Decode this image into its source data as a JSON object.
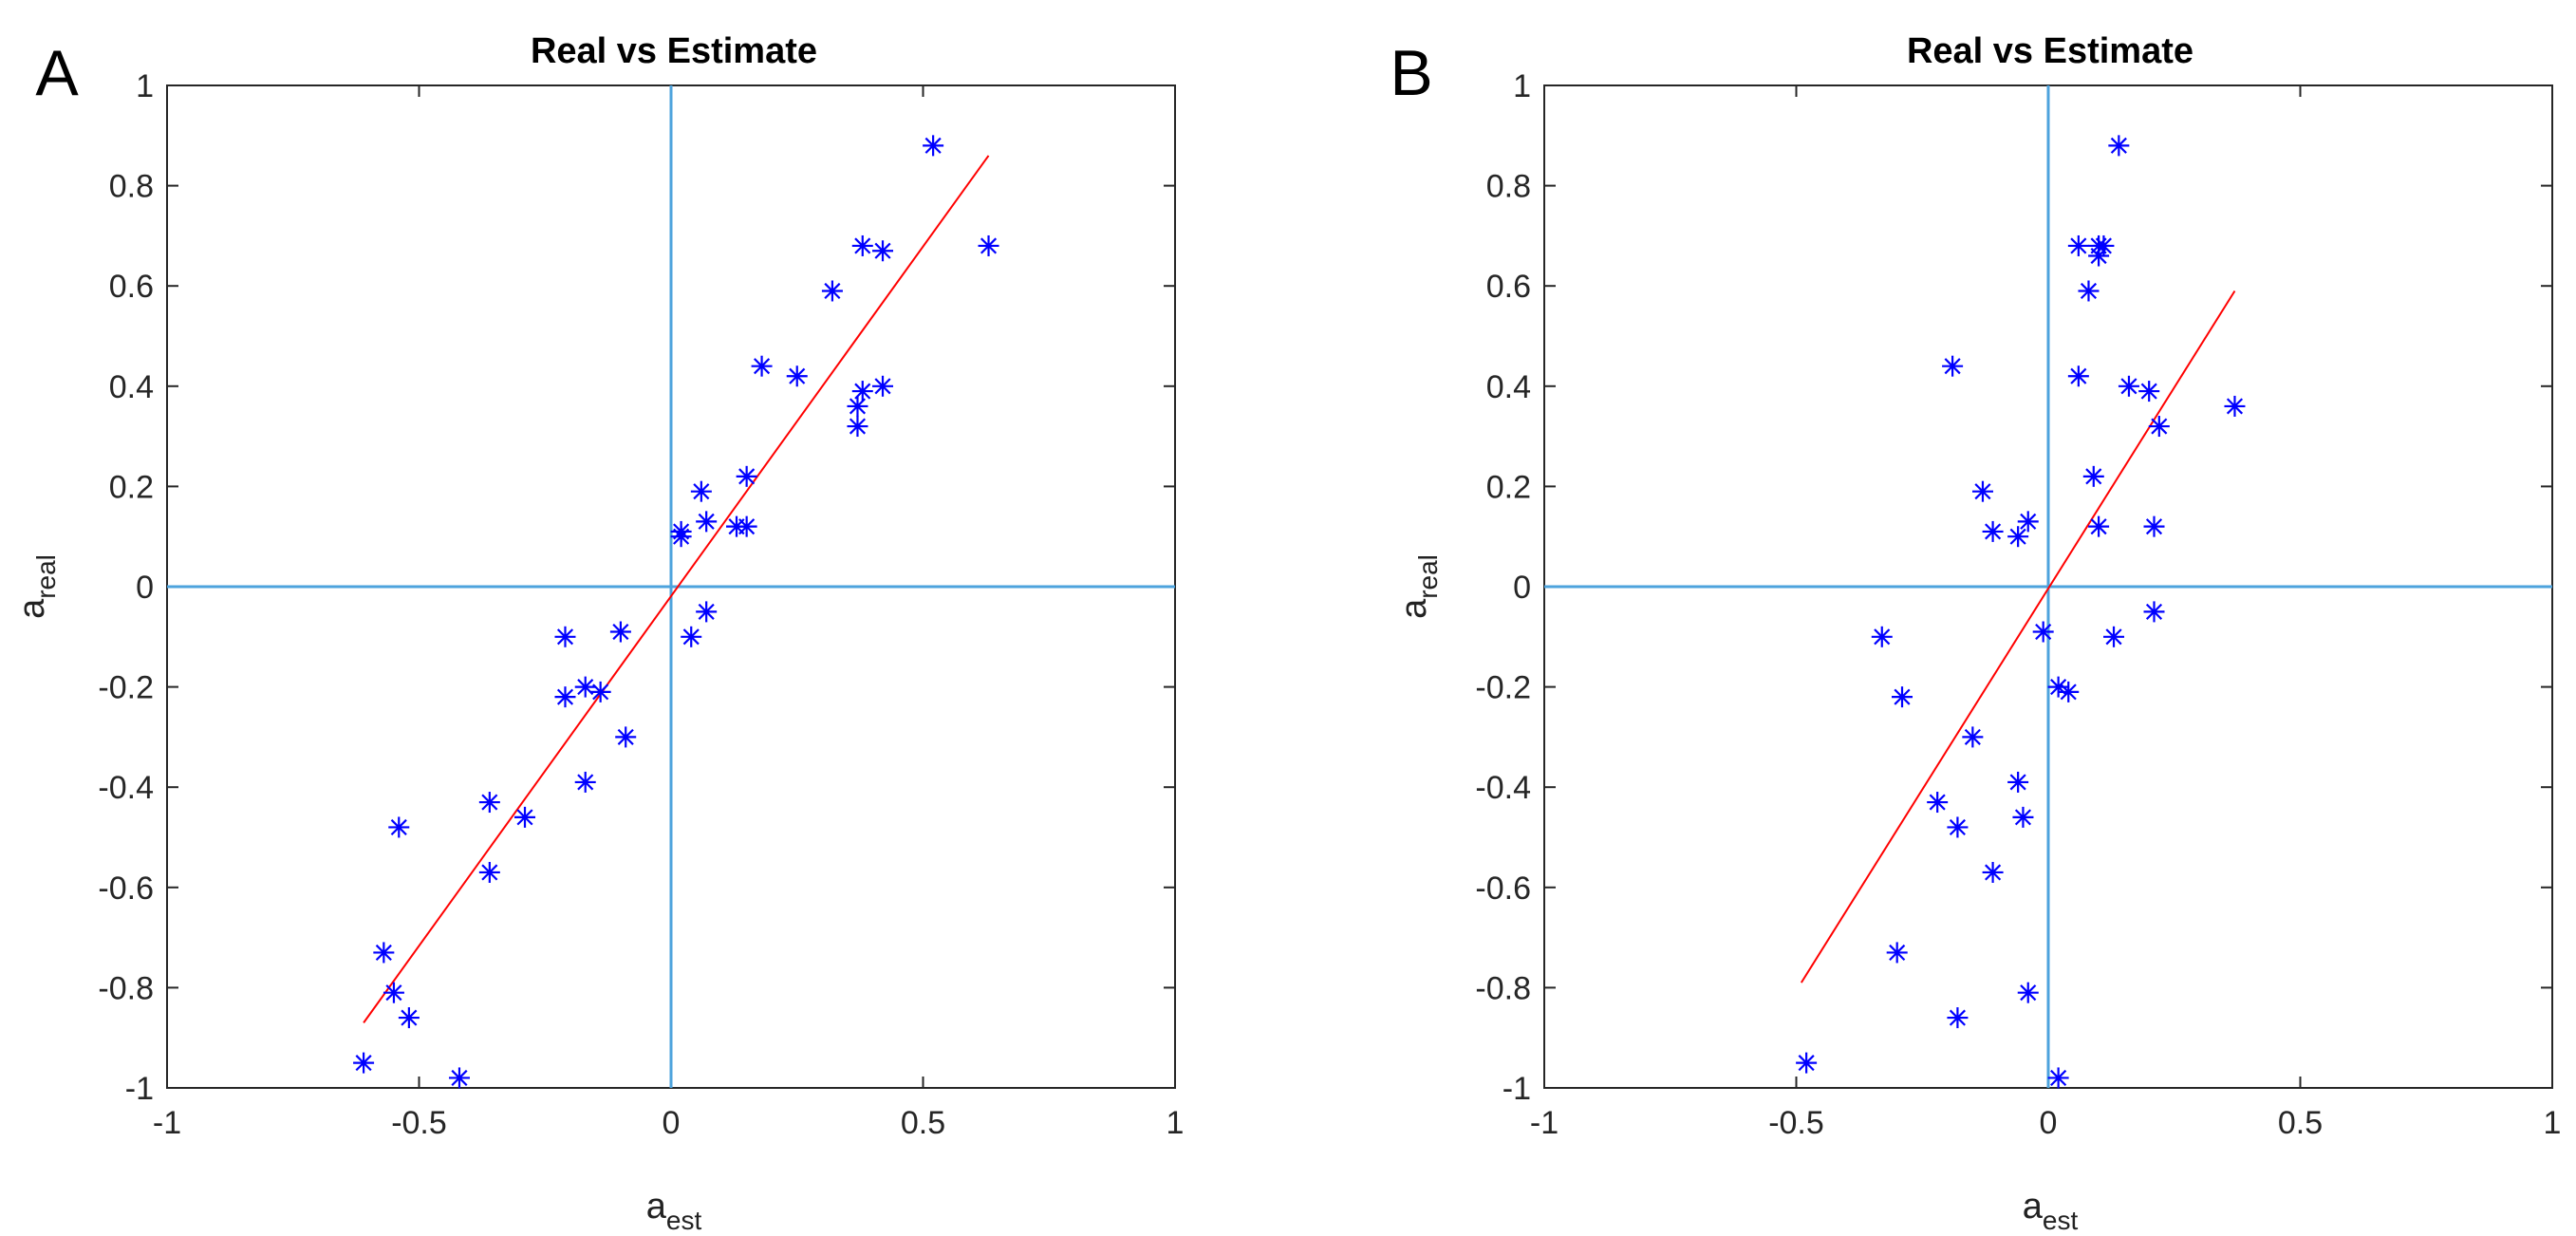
{
  "chart_data": [
    {
      "panel_label": "A",
      "type": "scatter",
      "title": "Real vs Estimate",
      "xlabel": {
        "base": "a",
        "sub": "est"
      },
      "ylabel": {
        "base": "a",
        "sub": "real"
      },
      "xlim": [
        -1,
        1
      ],
      "ylim": [
        -1,
        1
      ],
      "xticks": [
        "-1",
        "-0.5",
        "0",
        "0.5",
        "1"
      ],
      "yticks": [
        "-1",
        "-0.8",
        "-0.6",
        "-0.4",
        "-0.2",
        "0",
        "0.2",
        "0.4",
        "0.6",
        "0.8",
        "1"
      ],
      "marker_color": "#0000ff",
      "fit_color": "#ff0000",
      "axis_line_color": "#4da3dd",
      "points": [
        [
          0.52,
          0.88
        ],
        [
          0.38,
          0.68
        ],
        [
          0.63,
          0.68
        ],
        [
          0.42,
          0.67
        ],
        [
          0.32,
          0.59
        ],
        [
          0.18,
          0.44
        ],
        [
          0.25,
          0.42
        ],
        [
          0.38,
          0.39
        ],
        [
          0.42,
          0.4
        ],
        [
          0.37,
          0.36
        ],
        [
          0.37,
          0.32
        ],
        [
          0.15,
          0.22
        ],
        [
          0.06,
          0.19
        ],
        [
          0.07,
          0.13
        ],
        [
          0.13,
          0.12
        ],
        [
          0.15,
          0.12
        ],
        [
          0.02,
          0.11
        ],
        [
          0.02,
          0.1
        ],
        [
          0.07,
          -0.05
        ],
        [
          0.04,
          -0.1
        ],
        [
          -0.21,
          -0.1
        ],
        [
          -0.1,
          -0.09
        ],
        [
          -0.21,
          -0.22
        ],
        [
          -0.17,
          -0.2
        ],
        [
          -0.14,
          -0.21
        ],
        [
          -0.09,
          -0.3
        ],
        [
          -0.17,
          -0.39
        ],
        [
          -0.36,
          -0.43
        ],
        [
          -0.29,
          -0.46
        ],
        [
          -0.54,
          -0.48
        ],
        [
          -0.36,
          -0.57
        ],
        [
          -0.57,
          -0.73
        ],
        [
          -0.55,
          -0.81
        ],
        [
          -0.52,
          -0.86
        ],
        [
          -0.61,
          -0.95
        ],
        [
          -0.42,
          -0.98
        ]
      ],
      "fit_line": {
        "x": [
          -0.61,
          0.63
        ],
        "y": [
          -0.87,
          0.86
        ]
      }
    },
    {
      "panel_label": "B",
      "type": "scatter",
      "title": "Real vs Estimate",
      "xlabel": {
        "base": "a",
        "sub": "est"
      },
      "ylabel": {
        "base": "a",
        "sub": "real"
      },
      "xlim": [
        -1,
        1
      ],
      "ylim": [
        -1,
        1
      ],
      "xticks": [
        "-1",
        "-0.5",
        "0",
        "0.5",
        "1"
      ],
      "yticks": [
        "-1",
        "-0.8",
        "-0.6",
        "-0.4",
        "-0.2",
        "0",
        "0.2",
        "0.4",
        "0.6",
        "0.8",
        "1"
      ],
      "marker_color": "#0000ff",
      "fit_color": "#ff0000",
      "axis_line_color": "#4da3dd",
      "points": [
        [
          0.14,
          0.88
        ],
        [
          0.06,
          0.68
        ],
        [
          0.1,
          0.68
        ],
        [
          0.11,
          0.68
        ],
        [
          0.1,
          0.66
        ],
        [
          0.08,
          0.59
        ],
        [
          -0.19,
          0.44
        ],
        [
          0.06,
          0.42
        ],
        [
          0.16,
          0.4
        ],
        [
          0.2,
          0.39
        ],
        [
          0.37,
          0.36
        ],
        [
          0.22,
          0.32
        ],
        [
          0.09,
          0.22
        ],
        [
          -0.13,
          0.19
        ],
        [
          -0.04,
          0.13
        ],
        [
          -0.11,
          0.11
        ],
        [
          -0.06,
          0.1
        ],
        [
          0.1,
          0.12
        ],
        [
          0.21,
          0.12
        ],
        [
          0.21,
          -0.05
        ],
        [
          -0.33,
          -0.1
        ],
        [
          0.13,
          -0.1
        ],
        [
          -0.01,
          -0.09
        ],
        [
          -0.29,
          -0.22
        ],
        [
          0.02,
          -0.2
        ],
        [
          0.04,
          -0.21
        ],
        [
          -0.15,
          -0.3
        ],
        [
          -0.06,
          -0.39
        ],
        [
          -0.05,
          -0.46
        ],
        [
          -0.22,
          -0.43
        ],
        [
          -0.18,
          -0.48
        ],
        [
          -0.11,
          -0.57
        ],
        [
          -0.3,
          -0.73
        ],
        [
          -0.04,
          -0.81
        ],
        [
          -0.18,
          -0.86
        ],
        [
          -0.48,
          -0.95
        ],
        [
          0.02,
          -0.98
        ]
      ],
      "fit_line": {
        "x": [
          -0.49,
          0.37
        ],
        "y": [
          -0.79,
          0.59
        ]
      }
    }
  ]
}
